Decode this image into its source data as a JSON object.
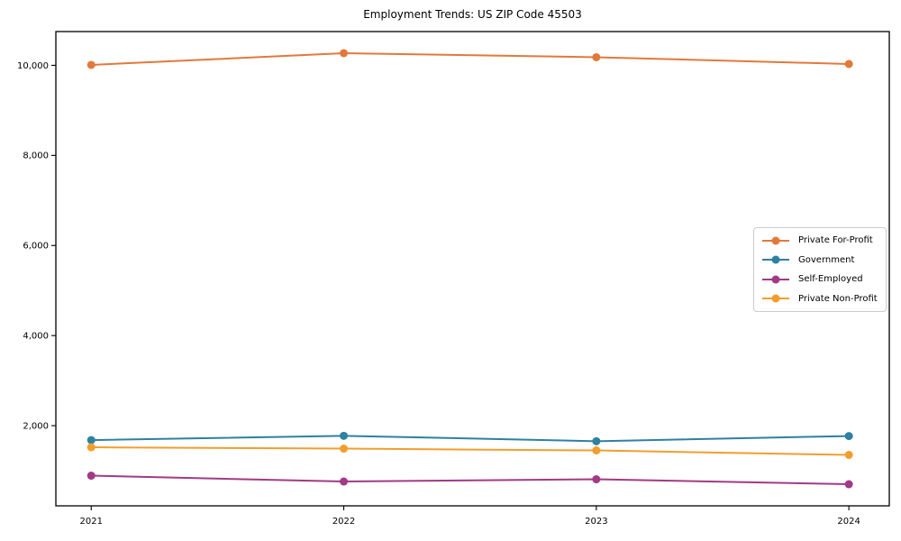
{
  "chart_data": {
    "type": "line",
    "title": "Employment Trends: US ZIP Code 45503",
    "x": [
      2021,
      2022,
      2023,
      2024
    ],
    "x_tick_labels": [
      "2021",
      "2022",
      "2023",
      "2024"
    ],
    "y_ticks": [
      2000,
      4000,
      6000,
      8000,
      10000
    ],
    "y_tick_labels": [
      "2,000",
      "4,000",
      "6,000",
      "8,000",
      "10,000"
    ],
    "series": [
      {
        "name": "Private For-Profit",
        "color": "#E2793B",
        "values": [
          10010,
          10270,
          10180,
          10030
        ]
      },
      {
        "name": "Government",
        "color": "#2E81A0",
        "values": [
          1680,
          1775,
          1655,
          1770
        ]
      },
      {
        "name": "Self-Employed",
        "color": "#A23A85",
        "values": [
          890,
          760,
          810,
          700
        ]
      },
      {
        "name": "Private Non-Profit",
        "color": "#F29E2D",
        "values": [
          1520,
          1490,
          1450,
          1350
        ]
      }
    ],
    "xlabel": "",
    "ylabel": "",
    "xlim": [
      2020.86,
      2024.16
    ],
    "ylim": [
      220,
      10750
    ],
    "grid": false,
    "legend_position": "center right"
  }
}
